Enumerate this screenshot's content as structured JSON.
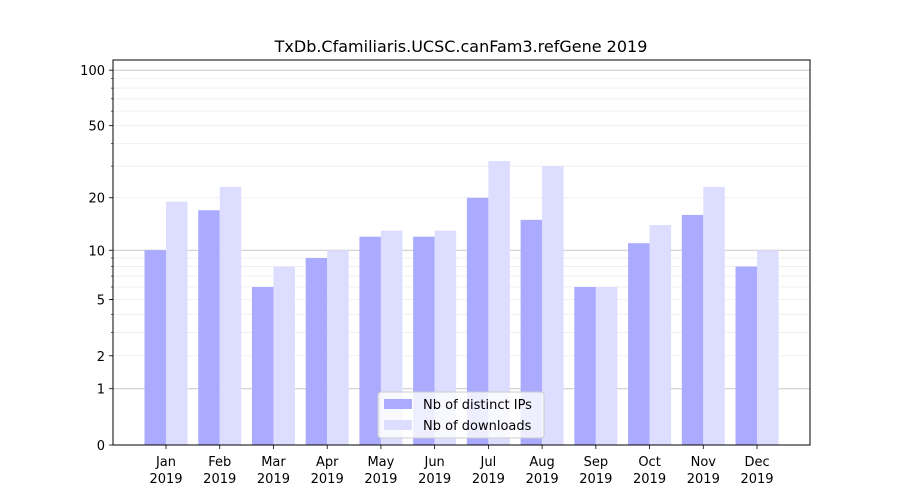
{
  "chart_data": {
    "type": "bar",
    "title": "TxDb.Cfamiliaris.UCSC.canFam3.refGene 2019",
    "xlabel": "",
    "ylabel": "",
    "yscale": "log10(1+y)",
    "ylim": [
      0,
      110
    ],
    "yticks": [
      0,
      1,
      2,
      5,
      10,
      20,
      50,
      100
    ],
    "ytick_labels": [
      "0",
      "1",
      "2",
      "5",
      "10",
      "20",
      "50",
      "100"
    ],
    "grid": true,
    "legend_position": "bottom-center",
    "categories": [
      {
        "month": "Jan",
        "year": "2019"
      },
      {
        "month": "Feb",
        "year": "2019"
      },
      {
        "month": "Mar",
        "year": "2019"
      },
      {
        "month": "Apr",
        "year": "2019"
      },
      {
        "month": "May",
        "year": "2019"
      },
      {
        "month": "Jun",
        "year": "2019"
      },
      {
        "month": "Jul",
        "year": "2019"
      },
      {
        "month": "Aug",
        "year": "2019"
      },
      {
        "month": "Sep",
        "year": "2019"
      },
      {
        "month": "Oct",
        "year": "2019"
      },
      {
        "month": "Nov",
        "year": "2019"
      },
      {
        "month": "Dec",
        "year": "2019"
      }
    ],
    "series": [
      {
        "name": "Nb of distinct IPs",
        "color": "#aaaaff",
        "values": [
          10,
          17,
          6,
          9,
          12,
          12,
          20,
          15,
          6,
          11,
          16,
          8
        ]
      },
      {
        "name": "Nb of downloads",
        "color": "#ddddff",
        "values": [
          19,
          23,
          8,
          10,
          13,
          13,
          32,
          30,
          6,
          14,
          23,
          10
        ]
      }
    ]
  }
}
